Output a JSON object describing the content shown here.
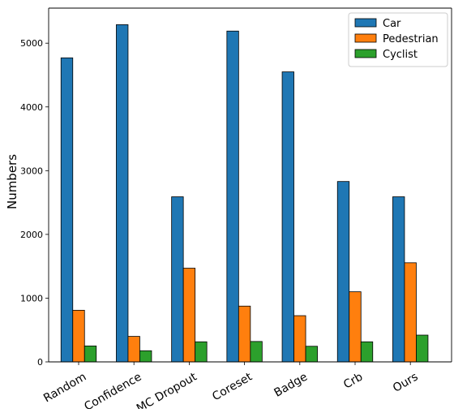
{
  "chart_data": {
    "type": "bar",
    "title": "",
    "xlabel": "",
    "ylabel": "Numbers",
    "categories": [
      "Random",
      "Confidence",
      "MC Dropout",
      "Coreset",
      "Badge",
      "Crb",
      "Ours"
    ],
    "series": [
      {
        "name": "Car",
        "color": "#1f77b4",
        "values": [
          4770,
          5290,
          2590,
          5190,
          4550,
          2830,
          2590
        ]
      },
      {
        "name": "Pedestrian",
        "color": "#ff7f0e",
        "values": [
          810,
          400,
          1470,
          875,
          725,
          1100,
          1555
        ]
      },
      {
        "name": "Cyclist",
        "color": "#2ca02c",
        "values": [
          250,
          175,
          315,
          320,
          245,
          315,
          420
        ]
      }
    ],
    "ylim": [
      0,
      5550
    ],
    "yticks": [
      0,
      1000,
      2000,
      3000,
      4000,
      5000
    ],
    "grid": false,
    "legend_position": "top-right"
  }
}
